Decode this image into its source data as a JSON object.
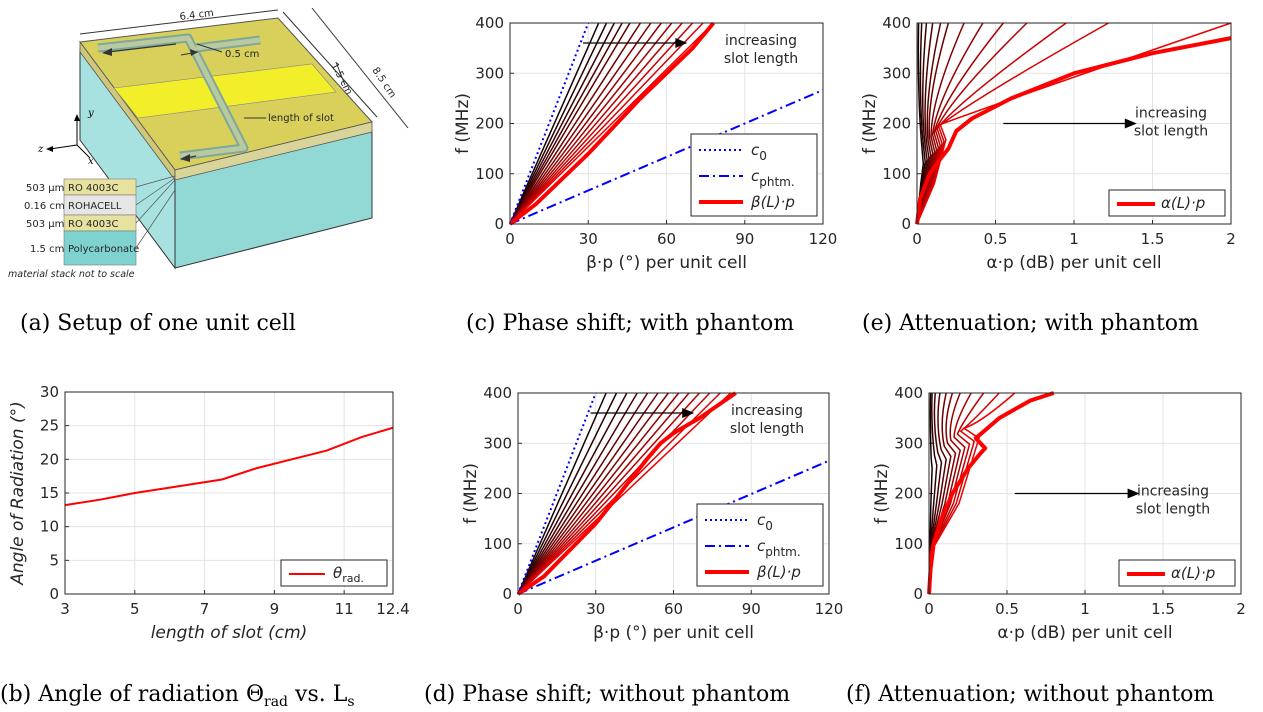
{
  "panels": {
    "a": {
      "caption": "(a) Setup of one unit cell",
      "dims": {
        "width": "6.4 cm",
        "depth": "8.5 cm",
        "slot_width": "0.5 cm",
        "strip_width": "1.5 cm"
      },
      "slot_label": "length of slot",
      "axes": {
        "y": "y",
        "z": "z",
        "x": "x"
      },
      "stack": [
        {
          "thickness": "503 µm",
          "material": "RO 4003C",
          "color": "#e8e2a0"
        },
        {
          "thickness": "0.16 cm",
          "material": "ROHACELL",
          "color": "#e6e6e6"
        },
        {
          "thickness": "503 µm",
          "material": "RO 4003C",
          "color": "#e8e2a0"
        },
        {
          "thickness": "1.5 cm",
          "material": "Polycarbonate",
          "color": "#7ed3d0"
        }
      ],
      "note": "material stack not to scale"
    },
    "b": {
      "caption_parts": [
        "(b) Angle of radiation Θ",
        "rad",
        " vs. L",
        "s"
      ]
    },
    "c": {
      "caption": "(c) Phase shift; with phantom"
    },
    "d": {
      "caption": "(d) Phase shift; without phantom"
    },
    "e": {
      "caption": "(e) Attenuation; with phantom"
    },
    "f": {
      "caption": "(f) Attenuation; without phantom"
    }
  },
  "colors": {
    "red": "#ff0000",
    "blue": "#0000ff",
    "grid": "#e0e0e0"
  },
  "chart_data": [
    {
      "id": "b",
      "type": "line",
      "xlabel": "length of slot (cm)",
      "ylabel": "Angle of Radiation (°)",
      "xlim": [
        3,
        12.4
      ],
      "ylim": [
        0,
        30
      ],
      "xticks": [
        3,
        5,
        7,
        9,
        11,
        12.4
      ],
      "yticks": [
        0,
        5,
        10,
        15,
        20,
        25,
        30
      ],
      "grid": true,
      "legend_position": "bottom-right",
      "series": [
        {
          "name": "θrad.",
          "color": "#ff0000",
          "x": [
            3,
            4,
            5,
            6,
            7.5,
            8.5,
            9.5,
            10.5,
            11.5,
            12.4
          ],
          "y": [
            13.2,
            14,
            15,
            15.8,
            17,
            18.7,
            20,
            21.3,
            23.3,
            24.7
          ]
        }
      ]
    },
    {
      "id": "c",
      "type": "line",
      "xlabel": "β·p (°) per unit cell",
      "ylabel": "f (MHz)",
      "xlim": [
        0,
        120
      ],
      "ylim": [
        0,
        400
      ],
      "xticks": [
        0,
        30,
        60,
        90,
        120
      ],
      "yticks": [
        0,
        100,
        200,
        300,
        400
      ],
      "grid": true,
      "legend_position": "bottom-right",
      "annotation": [
        "increasing",
        "slot length"
      ],
      "reference_lines": [
        {
          "name": "c0",
          "x_at_ymax": 30,
          "style": "dotted",
          "color": "#0000ff"
        },
        {
          "name": "cphtm.",
          "x_at_ymax": 180,
          "style": "dashdot",
          "color": "#0000ff"
        }
      ],
      "family_x_at_400": [
        34,
        37,
        40,
        43,
        46,
        50,
        54,
        58,
        62,
        66,
        70,
        74,
        78
      ],
      "main_series": {
        "name": "β(L)·p",
        "x": [
          0,
          10,
          30,
          50,
          60,
          70,
          78
        ],
        "y": [
          0,
          40,
          140,
          250,
          300,
          350,
          400
        ]
      }
    },
    {
      "id": "d",
      "type": "line",
      "xlabel": "β·p (°) per unit cell",
      "ylabel": "f (MHz)",
      "xlim": [
        0,
        120
      ],
      "ylim": [
        0,
        400
      ],
      "xticks": [
        0,
        30,
        60,
        90,
        120
      ],
      "yticks": [
        0,
        100,
        200,
        300,
        400
      ],
      "grid": true,
      "legend_position": "bottom-right",
      "annotation": [
        "increasing",
        "slot length"
      ],
      "reference_lines": [
        {
          "name": "c0",
          "x_at_ymax": 30,
          "style": "dotted",
          "color": "#0000ff"
        },
        {
          "name": "cphtm.",
          "x_at_ymax": 181,
          "style": "dashdot",
          "color": "#0000ff"
        }
      ],
      "family_x_at_400": [
        34,
        38,
        42,
        46,
        50,
        54,
        58,
        62,
        66,
        70,
        74,
        78,
        82
      ],
      "main_series": {
        "name": "β(L)·p",
        "x": [
          0,
          10,
          30,
          50,
          55,
          60,
          70,
          84
        ],
        "y": [
          0,
          35,
          140,
          270,
          300,
          320,
          350,
          400
        ]
      }
    },
    {
      "id": "e",
      "type": "line",
      "xlabel": "α·p (dB) per unit cell",
      "ylabel": "f (MHz)",
      "xlim": [
        0,
        2
      ],
      "ylim": [
        0,
        400
      ],
      "xticks": [
        0,
        0.5,
        1,
        1.5,
        2
      ],
      "yticks": [
        0,
        100,
        200,
        300,
        400
      ],
      "grid": true,
      "legend_position": "bottom-right",
      "annotation": [
        "increasing",
        "slot length"
      ],
      "family_x_at_400": [
        0.01,
        0.03,
        0.06,
        0.1,
        0.15,
        0.2,
        0.3,
        0.42,
        0.55,
        0.7,
        0.95,
        1.22,
        2.0
      ],
      "main_series": {
        "name": "α(L)·p",
        "x": [
          0,
          0.02,
          0.08,
          0.15,
          0.2,
          0.25,
          0.35,
          0.6,
          1.0,
          1.5,
          2.0
        ],
        "y": [
          0,
          50,
          100,
          130,
          150,
          185,
          210,
          250,
          300,
          340,
          370
        ]
      }
    },
    {
      "id": "f",
      "type": "line",
      "xlabel": "α·p (dB) per unit cell",
      "ylabel": "f (MHz)",
      "xlim": [
        0,
        2
      ],
      "ylim": [
        0,
        400
      ],
      "xticks": [
        0,
        0.5,
        1,
        1.5,
        2
      ],
      "yticks": [
        0,
        100,
        200,
        300,
        400
      ],
      "grid": true,
      "legend_position": "bottom-right",
      "annotation": [
        "increasing",
        "slot length"
      ],
      "family_x_at_400": [
        0.01,
        0.02,
        0.04,
        0.07,
        0.11,
        0.15,
        0.2,
        0.27,
        0.35,
        0.45,
        0.55
      ],
      "main_series": {
        "name": "α(L)·p",
        "x": [
          0,
          0.01,
          0.03,
          0.08,
          0.15,
          0.25,
          0.33,
          0.36,
          0.3,
          0.45,
          0.65,
          0.8
        ],
        "y": [
          0,
          50,
          100,
          150,
          200,
          250,
          280,
          290,
          310,
          350,
          385,
          400
        ]
      }
    }
  ]
}
